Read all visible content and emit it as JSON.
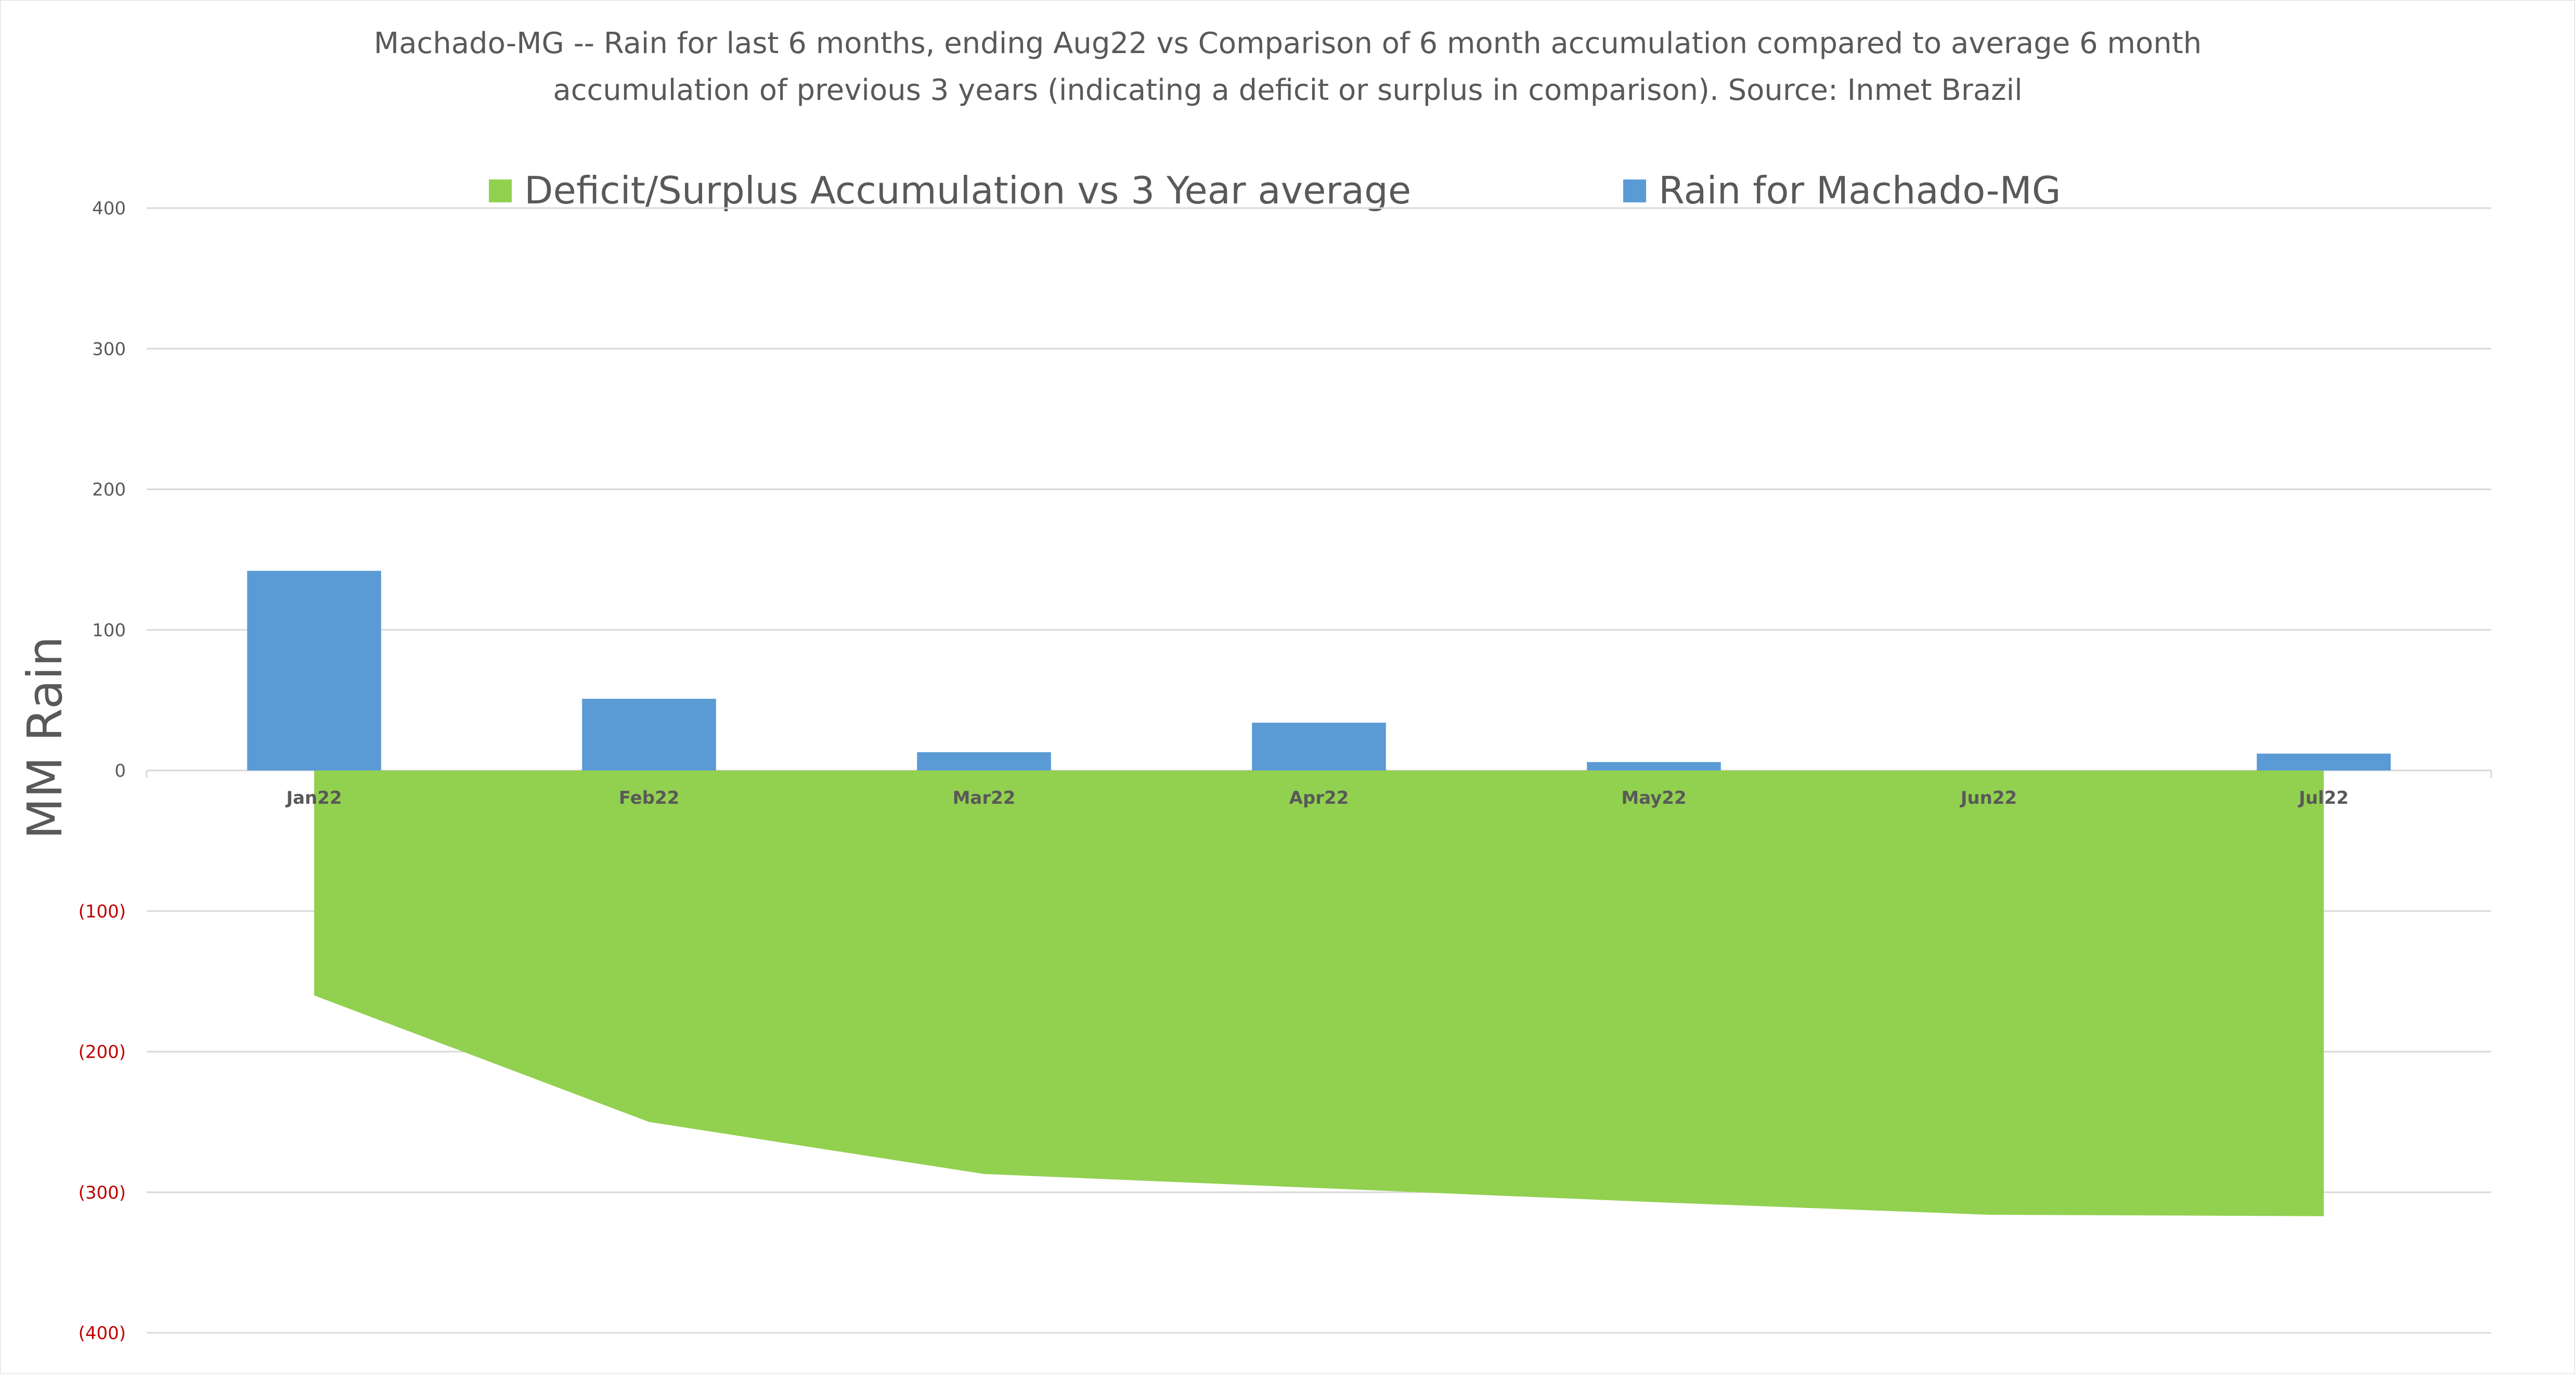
{
  "chart_data": {
    "type": "bar+area",
    "title": "Machado-MG -- Rain for last 6 months, ending Aug22  vs Comparison of 6 month accumulation compared to average 6 month accumulation of previous 3 years  (indicating a deficit or surplus in comparison). Source: Inmet Brazil",
    "title_lines": [
      "Machado-MG -- Rain for last 6 months, ending Aug22  vs Comparison of 6 month accumulation compared to average 6 month",
      "accumulation of previous 3 years  (indicating a deficit or surplus in comparison). Source: Inmet Brazil"
    ],
    "xlabel": "",
    "ylabel": "MM Rain",
    "ylim": [
      -400,
      400
    ],
    "yticks": [
      400,
      300,
      200,
      100,
      0,
      -100,
      -200,
      -300,
      -400
    ],
    "ytick_labels": [
      "400",
      "300",
      "200",
      "100",
      "0",
      "(100)",
      "(200)",
      "(300)",
      "(400)"
    ],
    "categories": [
      "Jan22",
      "Feb22",
      "Mar22",
      "Apr22",
      "May22",
      "Jun22",
      "Jul22"
    ],
    "grid": true,
    "legend_position": "top",
    "series": [
      {
        "name": "Deficit/Surplus Accumulation vs 3 Year average",
        "type": "area",
        "color": "#92d050",
        "values": [
          -160,
          -250,
          -287,
          -297,
          -307,
          -316,
          -317
        ]
      },
      {
        "name": "Rain for Machado-MG",
        "type": "bar",
        "color": "#5b9bd5",
        "values": [
          142,
          51,
          13,
          34,
          6,
          0,
          12
        ]
      }
    ],
    "colors": {
      "negative_tick": "#c00000",
      "positive_tick": "#595959",
      "grid": "#d9d9d9"
    }
  }
}
